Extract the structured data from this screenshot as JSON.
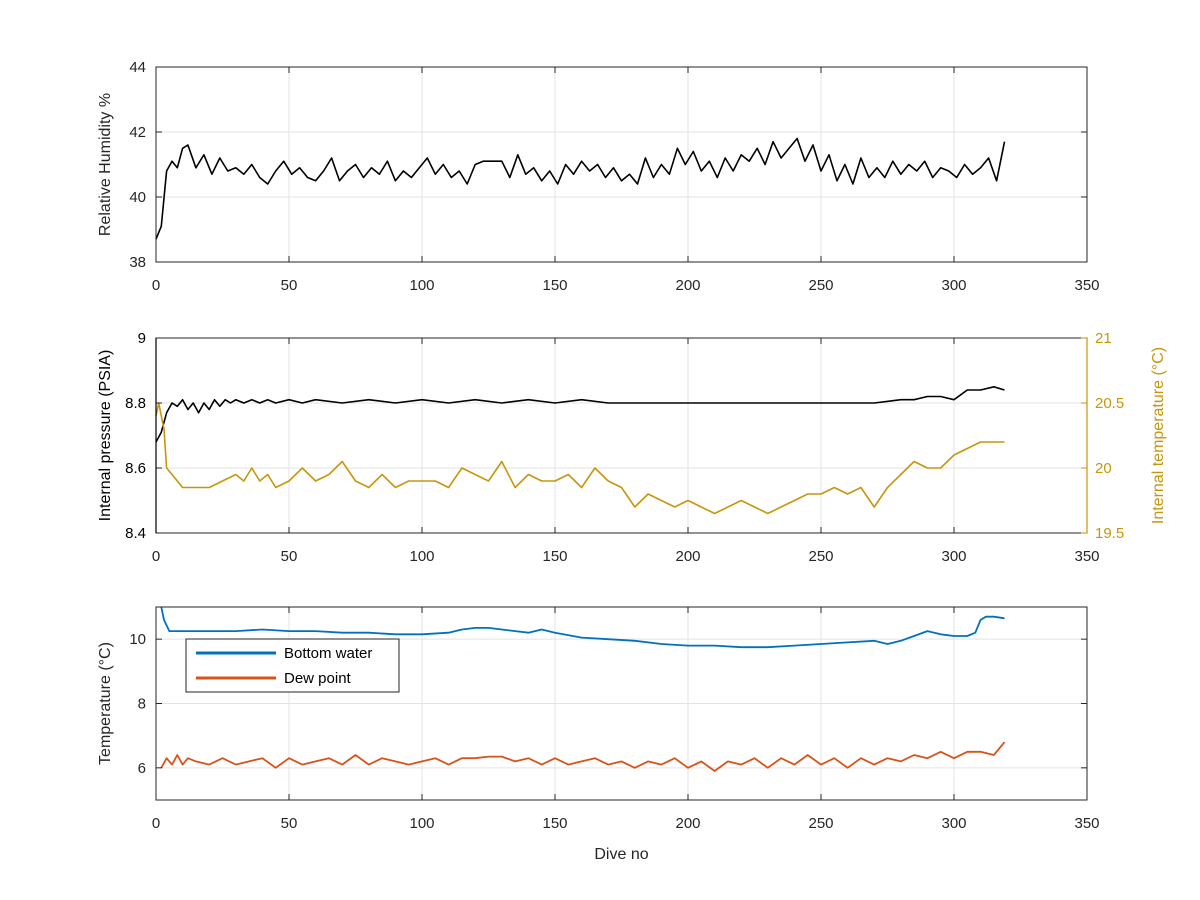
{
  "chart_data": [
    {
      "type": "line",
      "ylabel": "Relative Humidity %",
      "xlim": [
        0,
        350
      ],
      "ylim": [
        38,
        44
      ],
      "xticks": [
        0,
        50,
        100,
        150,
        200,
        250,
        300,
        350
      ],
      "xtick_labels": [
        "0",
        "50",
        "100",
        "150",
        "200",
        "250",
        "300",
        "350"
      ],
      "yticks": [
        38,
        40,
        42,
        44
      ],
      "ytick_labels": [
        "38",
        "40",
        "42",
        "44"
      ],
      "grid": true,
      "series": [
        {
          "color": "#000000",
          "x": [
            0,
            2,
            4,
            6,
            8,
            10,
            12,
            15,
            18,
            21,
            24,
            27,
            30,
            33,
            36,
            39,
            42,
            45,
            48,
            51,
            54,
            57,
            60,
            63,
            66,
            69,
            72,
            75,
            78,
            81,
            84,
            87,
            90,
            93,
            96,
            99,
            102,
            105,
            108,
            111,
            114,
            117,
            120,
            123,
            126,
            130,
            133,
            136,
            139,
            142,
            145,
            148,
            151,
            154,
            157,
            160,
            163,
            166,
            169,
            172,
            175,
            178,
            181,
            184,
            187,
            190,
            193,
            196,
            199,
            202,
            205,
            208,
            211,
            214,
            217,
            220,
            223,
            226,
            229,
            232,
            235,
            238,
            241,
            244,
            247,
            250,
            253,
            256,
            259,
            262,
            265,
            268,
            271,
            274,
            277,
            280,
            283,
            286,
            289,
            292,
            295,
            298,
            301,
            304,
            307,
            310,
            313,
            316,
            319
          ],
          "y": [
            38.7,
            39.1,
            40.8,
            41.1,
            40.9,
            41.5,
            41.6,
            40.9,
            41.3,
            40.7,
            41.2,
            40.8,
            40.9,
            40.7,
            41.0,
            40.6,
            40.4,
            40.8,
            41.1,
            40.7,
            40.9,
            40.6,
            40.5,
            40.8,
            41.2,
            40.5,
            40.8,
            41.0,
            40.6,
            40.9,
            40.7,
            41.1,
            40.5,
            40.8,
            40.6,
            40.9,
            41.2,
            40.7,
            41.0,
            40.6,
            40.8,
            40.4,
            41.0,
            41.1,
            41.1,
            41.1,
            40.6,
            41.3,
            40.7,
            40.9,
            40.5,
            40.8,
            40.4,
            41.0,
            40.7,
            41.1,
            40.8,
            41.0,
            40.6,
            40.9,
            40.5,
            40.7,
            40.4,
            41.2,
            40.6,
            41.0,
            40.7,
            41.5,
            41.0,
            41.4,
            40.8,
            41.1,
            40.6,
            41.2,
            40.8,
            41.3,
            41.1,
            41.5,
            41.0,
            41.7,
            41.2,
            41.5,
            41.8,
            41.1,
            41.6,
            40.8,
            41.3,
            40.5,
            41.0,
            40.4,
            41.2,
            40.6,
            40.9,
            40.6,
            41.1,
            40.7,
            41.0,
            40.8,
            41.1,
            40.6,
            40.9,
            40.8,
            40.6,
            41.0,
            40.7,
            40.9,
            41.2,
            40.5,
            41.7
          ]
        }
      ]
    },
    {
      "type": "line",
      "ylabel": "Internal pressure (PSIA)",
      "y2label": "Internal temperature (°C)",
      "xlim": [
        0,
        350
      ],
      "ylim": [
        8.4,
        9.0
      ],
      "y2lim": [
        19.5,
        21
      ],
      "xticks": [
        0,
        50,
        100,
        150,
        200,
        250,
        300,
        350
      ],
      "xtick_labels": [
        "0",
        "50",
        "100",
        "150",
        "200",
        "250",
        "300",
        "350"
      ],
      "yticks": [
        8.4,
        8.6,
        8.8,
        9.0
      ],
      "ytick_labels": [
        "8.4",
        "8.6",
        "8.8",
        "9"
      ],
      "y2ticks": [
        19.5,
        20,
        20.5,
        21
      ],
      "y2tick_labels": [
        "19.5",
        "20",
        "20.5",
        "21"
      ],
      "grid": true,
      "series": [
        {
          "axis": "left",
          "color": "#000000",
          "x": [
            0,
            2,
            4,
            6,
            8,
            10,
            12,
            14,
            16,
            18,
            20,
            22,
            24,
            26,
            28,
            30,
            33,
            36,
            39,
            42,
            45,
            50,
            55,
            60,
            70,
            80,
            90,
            100,
            110,
            120,
            130,
            140,
            150,
            160,
            170,
            180,
            190,
            200,
            210,
            220,
            230,
            240,
            250,
            260,
            270,
            280,
            285,
            290,
            295,
            300,
            305,
            310,
            315,
            319
          ],
          "y": [
            8.68,
            8.71,
            8.77,
            8.8,
            8.79,
            8.81,
            8.78,
            8.8,
            8.77,
            8.8,
            8.78,
            8.81,
            8.79,
            8.81,
            8.8,
            8.81,
            8.8,
            8.81,
            8.8,
            8.81,
            8.8,
            8.81,
            8.8,
            8.81,
            8.8,
            8.81,
            8.8,
            8.81,
            8.8,
            8.81,
            8.8,
            8.81,
            8.8,
            8.81,
            8.8,
            8.8,
            8.8,
            8.8,
            8.8,
            8.8,
            8.8,
            8.8,
            8.8,
            8.8,
            8.8,
            8.81,
            8.81,
            8.82,
            8.82,
            8.81,
            8.84,
            8.84,
            8.85,
            8.84
          ]
        },
        {
          "axis": "right",
          "color": "#C8960C",
          "x": [
            0,
            1,
            2,
            3,
            4,
            6,
            8,
            10,
            15,
            20,
            25,
            30,
            33,
            36,
            39,
            42,
            45,
            50,
            55,
            60,
            65,
            70,
            75,
            80,
            85,
            90,
            95,
            100,
            105,
            110,
            115,
            120,
            125,
            130,
            135,
            140,
            145,
            150,
            155,
            160,
            165,
            170,
            175,
            180,
            185,
            190,
            195,
            200,
            205,
            210,
            215,
            220,
            225,
            230,
            235,
            240,
            245,
            250,
            255,
            260,
            265,
            270,
            275,
            280,
            285,
            290,
            295,
            300,
            305,
            310,
            315,
            319
          ],
          "y": [
            20.4,
            20.5,
            20.4,
            20.3,
            20.0,
            19.95,
            19.9,
            19.85,
            19.85,
            19.85,
            19.9,
            19.95,
            19.9,
            20.0,
            19.9,
            19.95,
            19.85,
            19.9,
            20.0,
            19.9,
            19.95,
            20.05,
            19.9,
            19.85,
            19.95,
            19.85,
            19.9,
            19.9,
            19.9,
            19.85,
            20.0,
            19.95,
            19.9,
            20.05,
            19.85,
            19.95,
            19.9,
            19.9,
            19.95,
            19.85,
            20.0,
            19.9,
            19.85,
            19.7,
            19.8,
            19.75,
            19.7,
            19.75,
            19.7,
            19.65,
            19.7,
            19.75,
            19.7,
            19.65,
            19.7,
            19.75,
            19.8,
            19.8,
            19.85,
            19.8,
            19.85,
            19.7,
            19.85,
            19.95,
            20.05,
            20.0,
            20.0,
            20.1,
            20.15,
            20.2,
            20.2,
            20.2
          ]
        }
      ]
    },
    {
      "type": "line",
      "xlabel": "Dive no",
      "ylabel": "Temperature (°C)",
      "xlim": [
        0,
        350
      ],
      "ylim": [
        5,
        11
      ],
      "xticks": [
        0,
        50,
        100,
        150,
        200,
        250,
        300,
        350
      ],
      "xtick_labels": [
        "0",
        "50",
        "100",
        "150",
        "200",
        "250",
        "300",
        "350"
      ],
      "yticks": [
        6,
        8,
        10
      ],
      "ytick_labels": [
        "6",
        "8",
        "10"
      ],
      "grid": true,
      "legend": "upper-left",
      "series": [
        {
          "name": "Bottom water",
          "color": "#0072BD",
          "x": [
            2,
            3,
            5,
            10,
            20,
            30,
            40,
            50,
            60,
            70,
            80,
            90,
            100,
            110,
            115,
            120,
            125,
            130,
            135,
            140,
            145,
            150,
            160,
            170,
            180,
            190,
            200,
            210,
            220,
            230,
            240,
            250,
            260,
            270,
            275,
            280,
            285,
            290,
            295,
            300,
            305,
            308,
            310,
            312,
            315,
            319
          ],
          "y": [
            11.0,
            10.6,
            10.25,
            10.25,
            10.25,
            10.25,
            10.3,
            10.25,
            10.25,
            10.2,
            10.2,
            10.15,
            10.15,
            10.2,
            10.3,
            10.35,
            10.35,
            10.3,
            10.25,
            10.2,
            10.3,
            10.2,
            10.05,
            10.0,
            9.95,
            9.85,
            9.8,
            9.8,
            9.75,
            9.75,
            9.8,
            9.85,
            9.9,
            9.95,
            9.85,
            9.95,
            10.1,
            10.25,
            10.15,
            10.1,
            10.1,
            10.2,
            10.6,
            10.7,
            10.7,
            10.65
          ]
        },
        {
          "name": "Dew point",
          "color": "#D95319",
          "x": [
            2,
            4,
            6,
            8,
            10,
            12,
            15,
            20,
            25,
            30,
            35,
            40,
            45,
            50,
            55,
            60,
            65,
            70,
            75,
            80,
            85,
            90,
            95,
            100,
            105,
            110,
            115,
            120,
            125,
            130,
            135,
            140,
            145,
            150,
            155,
            160,
            165,
            170,
            175,
            180,
            185,
            190,
            195,
            200,
            205,
            210,
            215,
            220,
            225,
            230,
            235,
            240,
            245,
            250,
            255,
            260,
            265,
            270,
            275,
            280,
            285,
            290,
            295,
            300,
            305,
            310,
            315,
            319
          ],
          "y": [
            6.0,
            6.3,
            6.1,
            6.4,
            6.1,
            6.3,
            6.2,
            6.1,
            6.3,
            6.1,
            6.2,
            6.3,
            6.0,
            6.3,
            6.1,
            6.2,
            6.3,
            6.1,
            6.4,
            6.1,
            6.3,
            6.2,
            6.1,
            6.2,
            6.3,
            6.1,
            6.3,
            6.3,
            6.35,
            6.35,
            6.2,
            6.3,
            6.1,
            6.3,
            6.1,
            6.2,
            6.3,
            6.1,
            6.2,
            6.0,
            6.2,
            6.1,
            6.3,
            6.0,
            6.2,
            5.9,
            6.2,
            6.1,
            6.3,
            6.0,
            6.3,
            6.1,
            6.4,
            6.1,
            6.3,
            6.0,
            6.3,
            6.1,
            6.3,
            6.2,
            6.4,
            6.3,
            6.5,
            6.3,
            6.5,
            6.5,
            6.4,
            6.8
          ]
        }
      ]
    }
  ]
}
